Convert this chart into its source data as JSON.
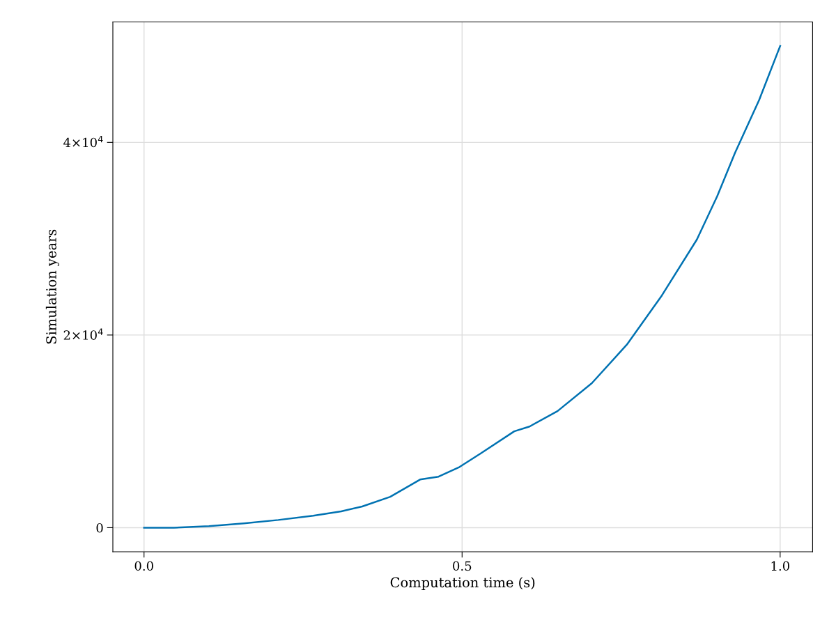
{
  "chart_data": {
    "type": "line",
    "xlabel": "Computation time (s)",
    "ylabel": "Simulation years",
    "x": [
      0,
      0.047,
      0.102,
      0.157,
      0.211,
      0.266,
      0.31,
      0.343,
      0.387,
      0.434,
      0.463,
      0.496,
      0.529,
      0.582,
      0.606,
      0.65,
      0.704,
      0.759,
      0.814,
      0.869,
      0.901,
      0.929,
      0.967,
      1.0
    ],
    "series": [
      {
        "color": "#0072b2",
        "values": [
          0,
          0,
          150,
          450,
          800,
          1250,
          1700,
          2200,
          3200,
          5000,
          5300,
          6300,
          7700,
          10000,
          10500,
          12100,
          15000,
          19000,
          24100,
          29900,
          34400,
          38900,
          44400,
          50000
        ]
      }
    ],
    "xlim": [
      -0.049,
      1.051
    ],
    "ylim": [
      -2500,
      52500
    ],
    "xticks": [
      {
        "value": 0,
        "label": "0.0"
      },
      0.5,
      {
        "value": 1,
        "label": "1.0"
      }
    ],
    "yticks": [
      0,
      {
        "value": 20000,
        "label": "2×10$^{4}$"
      },
      {
        "value": 40000,
        "label": "4×10$^{4}$"
      }
    ],
    "grid": true,
    "legend": false,
    "marker": "none",
    "line_style": "solid"
  }
}
